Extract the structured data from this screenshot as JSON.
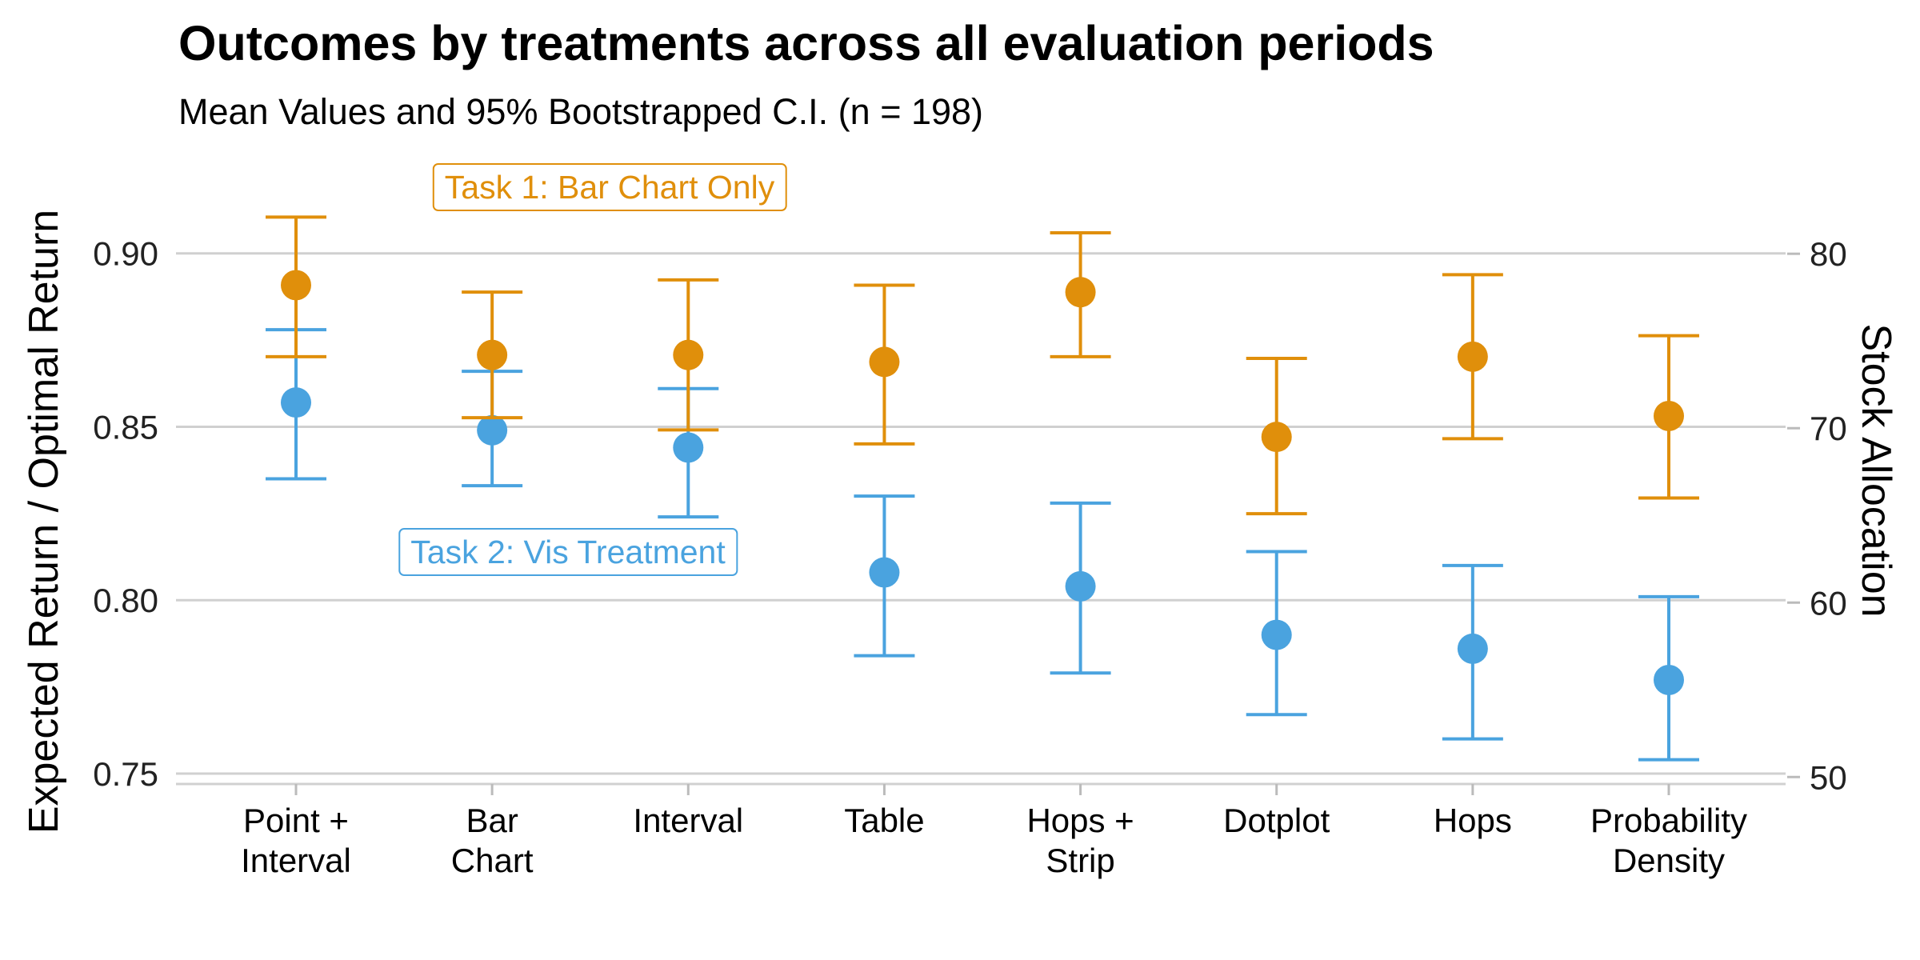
{
  "chart_data": {
    "type": "scatter",
    "title": "Outcomes by treatments across all evaluation periods",
    "subtitle": "Mean Values and 95% Bootstrapped C.I. (n = 198)",
    "ylabel": "Expected Return / Optimal Return",
    "y2label": "Stock Allocation",
    "ylim": [
      0.747,
      0.92
    ],
    "y2lim": [
      49.6,
      84.0
    ],
    "yticks": [
      "0.75",
      "0.80",
      "0.85",
      "0.90"
    ],
    "y2ticks": [
      "50",
      "60",
      "70",
      "80"
    ],
    "grid": true,
    "categories": [
      [
        "Point +",
        "Interval"
      ],
      [
        "Bar",
        "Chart"
      ],
      [
        "Interval"
      ],
      [
        "Table"
      ],
      [
        "Hops +",
        "Strip"
      ],
      [
        "Dotplot"
      ],
      [
        "Hops"
      ],
      [
        "Probability",
        "Density"
      ]
    ],
    "series": [
      {
        "axis": "left",
        "color": "#4aa3df",
        "mean": [
          0.857,
          0.849,
          0.844,
          0.808,
          0.804,
          0.79,
          0.786,
          0.777
        ],
        "lower": [
          0.835,
          0.833,
          0.824,
          0.784,
          0.779,
          0.767,
          0.76,
          0.754
        ],
        "upper": [
          0.878,
          0.866,
          0.861,
          0.83,
          0.828,
          0.814,
          0.81,
          0.801
        ]
      },
      {
        "axis": "right",
        "color": "#e08f0b",
        "mean": [
          78.2,
          74.2,
          74.2,
          73.8,
          77.8,
          69.5,
          74.1,
          70.7
        ],
        "lower": [
          74.1,
          70.6,
          69.9,
          69.1,
          74.1,
          65.1,
          69.4,
          66.0
        ],
        "upper": [
          82.1,
          77.8,
          78.5,
          78.2,
          81.2,
          74.0,
          78.8,
          75.3
        ]
      }
    ],
    "annotations": [
      {
        "text": "Task 1: Bar Chart Only",
        "color": "#e08f0b"
      },
      {
        "text": "Task 2: Vis Treatment",
        "color": "#4aa3df"
      }
    ]
  }
}
